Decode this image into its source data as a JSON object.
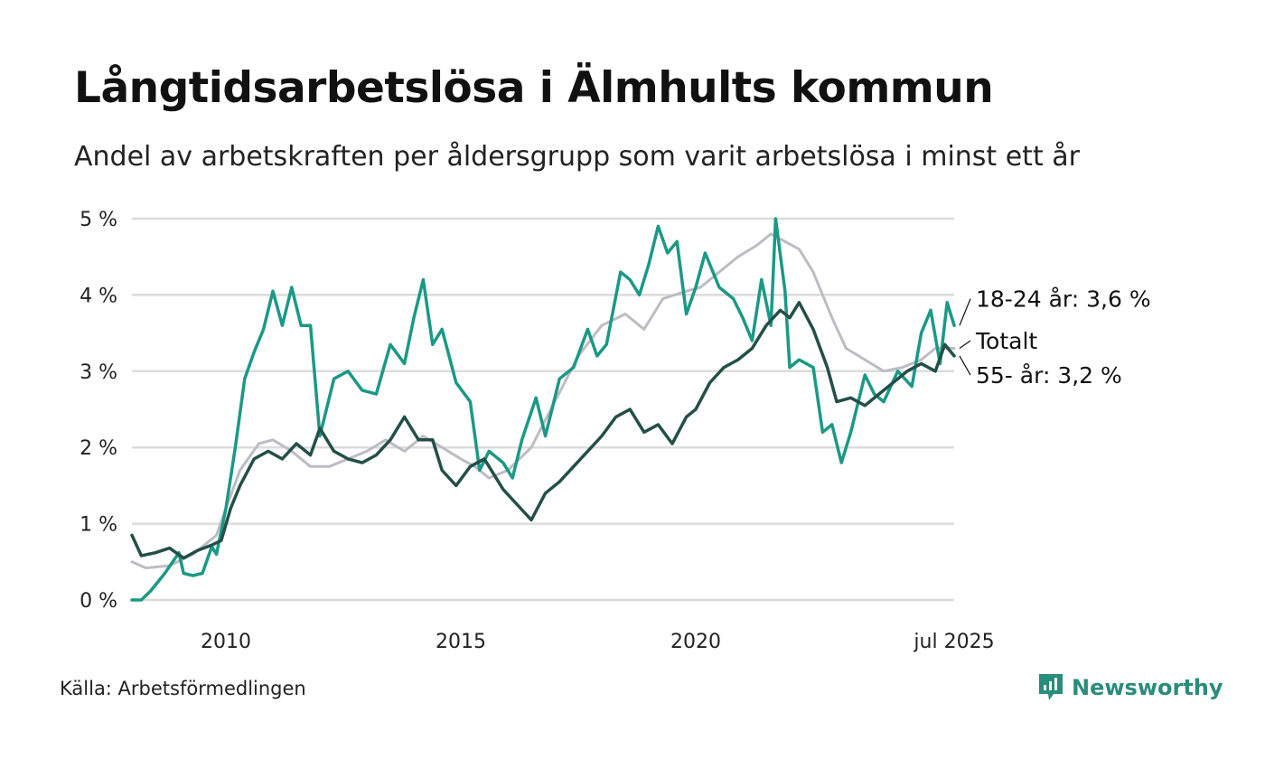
{
  "title": "Långtidsarbetslösa i Älmhults kommun",
  "subtitle": "Andel av arbetskraften per åldersgrupp som varit arbetslösa i minst ett år",
  "source": "Källa: Arbetsförmedlingen",
  "brand": "Newsworthy",
  "colors": {
    "young": "#1b9984",
    "total": "#bdbcc4",
    "old": "#234f47",
    "grid": "#dcdcdc",
    "brand": "#2a8c7a"
  },
  "chart_data": {
    "type": "line",
    "title": "Långtidsarbetslösa i Älmhults kommun",
    "subtitle": "Andel av arbetskraften per åldersgrupp som varit arbetslösa i minst ett år",
    "xlabel": "",
    "ylabel": "",
    "xlim": [
      2008.0,
      2025.5
    ],
    "ylim": [
      0,
      5
    ],
    "y_ticks": [
      0,
      1,
      2,
      3,
      4,
      5
    ],
    "y_tick_labels": [
      "0 %",
      "1 %",
      "2 %",
      "3 %",
      "4 %",
      "5 %"
    ],
    "x_ticks": [
      2010,
      2015,
      2020,
      2025.5
    ],
    "x_tick_labels": [
      "2010",
      "2015",
      "2020",
      "jul 2025"
    ],
    "grid": "horizontal",
    "legend": "direct labels at line ends",
    "series": [
      {
        "name": "Totalt",
        "label": "Totalt",
        "color_key": "total",
        "points": [
          [
            2008.0,
            0.5
          ],
          [
            2008.3,
            0.42
          ],
          [
            2008.8,
            0.45
          ],
          [
            2009.3,
            0.6
          ],
          [
            2009.8,
            0.85
          ],
          [
            2010.0,
            1.2
          ],
          [
            2010.3,
            1.7
          ],
          [
            2010.7,
            2.05
          ],
          [
            2011.0,
            2.1
          ],
          [
            2011.4,
            1.95
          ],
          [
            2011.8,
            1.75
          ],
          [
            2012.2,
            1.75
          ],
          [
            2012.6,
            1.85
          ],
          [
            2013.0,
            1.95
          ],
          [
            2013.4,
            2.1
          ],
          [
            2013.8,
            1.95
          ],
          [
            2014.2,
            2.15
          ],
          [
            2014.6,
            2.0
          ],
          [
            2015.0,
            1.85
          ],
          [
            2015.3,
            1.75
          ],
          [
            2015.6,
            1.6
          ],
          [
            2016.0,
            1.7
          ],
          [
            2016.5,
            2.0
          ],
          [
            2017.0,
            2.6
          ],
          [
            2017.5,
            3.2
          ],
          [
            2018.0,
            3.6
          ],
          [
            2018.5,
            3.75
          ],
          [
            2018.9,
            3.55
          ],
          [
            2019.3,
            3.95
          ],
          [
            2019.8,
            4.05
          ],
          [
            2020.1,
            4.1
          ],
          [
            2020.5,
            4.3
          ],
          [
            2020.9,
            4.5
          ],
          [
            2021.3,
            4.65
          ],
          [
            2021.6,
            4.8
          ],
          [
            2021.9,
            4.7
          ],
          [
            2022.2,
            4.6
          ],
          [
            2022.5,
            4.3
          ],
          [
            2022.9,
            3.7
          ],
          [
            2023.2,
            3.3
          ],
          [
            2023.6,
            3.15
          ],
          [
            2024.0,
            3.0
          ],
          [
            2024.4,
            3.05
          ],
          [
            2024.8,
            3.15
          ],
          [
            2025.1,
            3.3
          ],
          [
            2025.5,
            3.3
          ]
        ]
      },
      {
        "name": "18-24 år",
        "label": "18-24 år: 3,6 %",
        "color_key": "young",
        "points": [
          [
            2008.0,
            0.0
          ],
          [
            2008.2,
            0.0
          ],
          [
            2008.4,
            0.12
          ],
          [
            2008.7,
            0.35
          ],
          [
            2009.0,
            0.62
          ],
          [
            2009.1,
            0.35
          ],
          [
            2009.3,
            0.32
          ],
          [
            2009.5,
            0.35
          ],
          [
            2009.7,
            0.7
          ],
          [
            2009.8,
            0.6
          ],
          [
            2010.0,
            1.2
          ],
          [
            2010.2,
            2.0
          ],
          [
            2010.4,
            2.9
          ],
          [
            2010.6,
            3.25
          ],
          [
            2010.8,
            3.55
          ],
          [
            2011.0,
            4.05
          ],
          [
            2011.2,
            3.6
          ],
          [
            2011.4,
            4.1
          ],
          [
            2011.6,
            3.6
          ],
          [
            2011.8,
            3.6
          ],
          [
            2012.0,
            2.15
          ],
          [
            2012.3,
            2.9
          ],
          [
            2012.6,
            3.0
          ],
          [
            2012.9,
            2.75
          ],
          [
            2013.2,
            2.7
          ],
          [
            2013.5,
            3.35
          ],
          [
            2013.8,
            3.1
          ],
          [
            2014.0,
            3.7
          ],
          [
            2014.2,
            4.2
          ],
          [
            2014.4,
            3.35
          ],
          [
            2014.6,
            3.55
          ],
          [
            2014.9,
            2.85
          ],
          [
            2015.2,
            2.6
          ],
          [
            2015.4,
            1.7
          ],
          [
            2015.6,
            1.95
          ],
          [
            2015.9,
            1.8
          ],
          [
            2016.1,
            1.6
          ],
          [
            2016.3,
            2.1
          ],
          [
            2016.6,
            2.65
          ],
          [
            2016.8,
            2.15
          ],
          [
            2017.1,
            2.9
          ],
          [
            2017.4,
            3.05
          ],
          [
            2017.7,
            3.55
          ],
          [
            2017.9,
            3.2
          ],
          [
            2018.1,
            3.35
          ],
          [
            2018.4,
            4.3
          ],
          [
            2018.6,
            4.2
          ],
          [
            2018.8,
            4.0
          ],
          [
            2019.0,
            4.4
          ],
          [
            2019.2,
            4.9
          ],
          [
            2019.4,
            4.55
          ],
          [
            2019.6,
            4.7
          ],
          [
            2019.8,
            3.75
          ],
          [
            2020.0,
            4.1
          ],
          [
            2020.2,
            4.55
          ],
          [
            2020.5,
            4.1
          ],
          [
            2020.8,
            3.95
          ],
          [
            2021.0,
            3.7
          ],
          [
            2021.2,
            3.4
          ],
          [
            2021.4,
            4.2
          ],
          [
            2021.6,
            3.6
          ],
          [
            2021.7,
            5.0
          ],
          [
            2021.9,
            4.05
          ],
          [
            2022.0,
            3.05
          ],
          [
            2022.2,
            3.15
          ],
          [
            2022.5,
            3.05
          ],
          [
            2022.7,
            2.2
          ],
          [
            2022.9,
            2.3
          ],
          [
            2023.1,
            1.8
          ],
          [
            2023.3,
            2.2
          ],
          [
            2023.6,
            2.95
          ],
          [
            2023.8,
            2.7
          ],
          [
            2024.0,
            2.6
          ],
          [
            2024.3,
            3.0
          ],
          [
            2024.6,
            2.8
          ],
          [
            2024.8,
            3.5
          ],
          [
            2025.0,
            3.8
          ],
          [
            2025.2,
            3.1
          ],
          [
            2025.35,
            3.9
          ],
          [
            2025.5,
            3.6
          ]
        ]
      },
      {
        "name": "55- år",
        "label": "55- år: 3,2 %",
        "color_key": "old",
        "points": [
          [
            2008.0,
            0.85
          ],
          [
            2008.2,
            0.58
          ],
          [
            2008.5,
            0.62
          ],
          [
            2008.8,
            0.68
          ],
          [
            2009.1,
            0.55
          ],
          [
            2009.4,
            0.65
          ],
          [
            2009.7,
            0.72
          ],
          [
            2009.9,
            0.78
          ],
          [
            2010.1,
            1.2
          ],
          [
            2010.3,
            1.5
          ],
          [
            2010.6,
            1.85
          ],
          [
            2010.9,
            1.95
          ],
          [
            2011.2,
            1.85
          ],
          [
            2011.5,
            2.05
          ],
          [
            2011.8,
            1.9
          ],
          [
            2012.0,
            2.25
          ],
          [
            2012.3,
            1.95
          ],
          [
            2012.6,
            1.85
          ],
          [
            2012.9,
            1.8
          ],
          [
            2013.2,
            1.9
          ],
          [
            2013.5,
            2.1
          ],
          [
            2013.8,
            2.4
          ],
          [
            2014.1,
            2.1
          ],
          [
            2014.4,
            2.1
          ],
          [
            2014.6,
            1.7
          ],
          [
            2014.9,
            1.5
          ],
          [
            2015.2,
            1.75
          ],
          [
            2015.5,
            1.85
          ],
          [
            2015.7,
            1.65
          ],
          [
            2015.9,
            1.45
          ],
          [
            2016.2,
            1.25
          ],
          [
            2016.5,
            1.05
          ],
          [
            2016.8,
            1.4
          ],
          [
            2017.1,
            1.55
          ],
          [
            2017.4,
            1.75
          ],
          [
            2017.7,
            1.95
          ],
          [
            2018.0,
            2.15
          ],
          [
            2018.3,
            2.4
          ],
          [
            2018.6,
            2.5
          ],
          [
            2018.9,
            2.2
          ],
          [
            2019.2,
            2.3
          ],
          [
            2019.5,
            2.05
          ],
          [
            2019.8,
            2.4
          ],
          [
            2020.0,
            2.5
          ],
          [
            2020.3,
            2.85
          ],
          [
            2020.6,
            3.05
          ],
          [
            2020.9,
            3.15
          ],
          [
            2021.2,
            3.3
          ],
          [
            2021.5,
            3.6
          ],
          [
            2021.8,
            3.8
          ],
          [
            2022.0,
            3.7
          ],
          [
            2022.2,
            3.9
          ],
          [
            2022.5,
            3.55
          ],
          [
            2022.8,
            3.05
          ],
          [
            2023.0,
            2.6
          ],
          [
            2023.3,
            2.65
          ],
          [
            2023.6,
            2.55
          ],
          [
            2023.9,
            2.7
          ],
          [
            2024.2,
            2.85
          ],
          [
            2024.5,
            3.0
          ],
          [
            2024.8,
            3.1
          ],
          [
            2025.1,
            3.0
          ],
          [
            2025.3,
            3.35
          ],
          [
            2025.5,
            3.2
          ]
        ]
      }
    ]
  }
}
